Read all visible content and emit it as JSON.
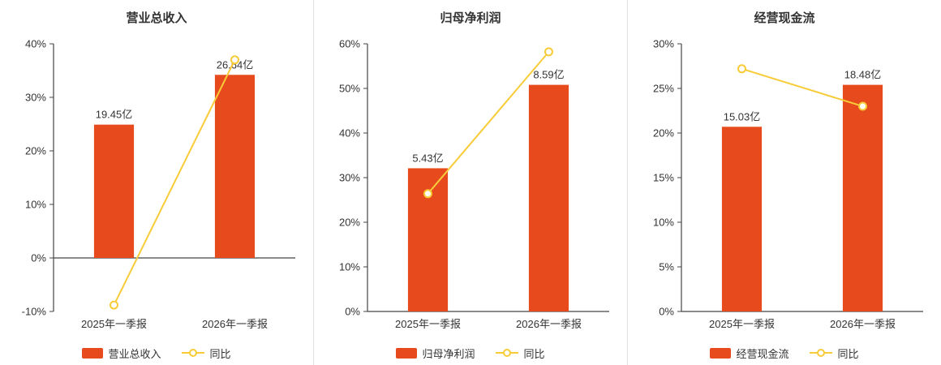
{
  "colors": {
    "bar": "#e64a1d",
    "line": "#f8cc38",
    "axis": "#444444",
    "text": "#333333",
    "separator": "#e0e0e0",
    "background": "#ffffff"
  },
  "chart_data": [
    {
      "type": "bar+line",
      "title": "营业总收入",
      "categories": [
        "2025年一季报",
        "2026年一季报"
      ],
      "series": [
        {
          "kind": "bar",
          "name": "营业总收入",
          "value_labels": [
            "19.45亿",
            "26.64亿"
          ],
          "plotted_pct": [
            24.9,
            34.2
          ]
        },
        {
          "kind": "line",
          "name": "同比",
          "values_pct": [
            -8.8,
            37.0
          ]
        }
      ],
      "ylim": [
        -10,
        40
      ],
      "ytick_step": 10,
      "yaxis_unit": "%",
      "grid": false,
      "legend_position": "bottom"
    },
    {
      "type": "bar+line",
      "title": "归母净利润",
      "categories": [
        "2025年一季报",
        "2026年一季报"
      ],
      "series": [
        {
          "kind": "bar",
          "name": "归母净利润",
          "value_labels": [
            "5.43亿",
            "8.59亿"
          ],
          "plotted_pct": [
            32.1,
            50.8
          ]
        },
        {
          "kind": "line",
          "name": "同比",
          "values_pct": [
            26.4,
            58.2
          ]
        }
      ],
      "ylim": [
        0,
        60
      ],
      "ytick_step": 10,
      "yaxis_unit": "%",
      "grid": false,
      "legend_position": "bottom"
    },
    {
      "type": "bar+line",
      "title": "经营现金流",
      "categories": [
        "2025年一季报",
        "2026年一季报"
      ],
      "series": [
        {
          "kind": "bar",
          "name": "经营现金流",
          "value_labels": [
            "15.03亿",
            "18.48亿"
          ],
          "plotted_pct": [
            20.7,
            25.4
          ]
        },
        {
          "kind": "line",
          "name": "同比",
          "values_pct": [
            27.2,
            23.0
          ]
        }
      ],
      "ylim": [
        0,
        30
      ],
      "ytick_step": 5,
      "yaxis_unit": "%",
      "grid": false,
      "legend_position": "bottom"
    }
  ]
}
